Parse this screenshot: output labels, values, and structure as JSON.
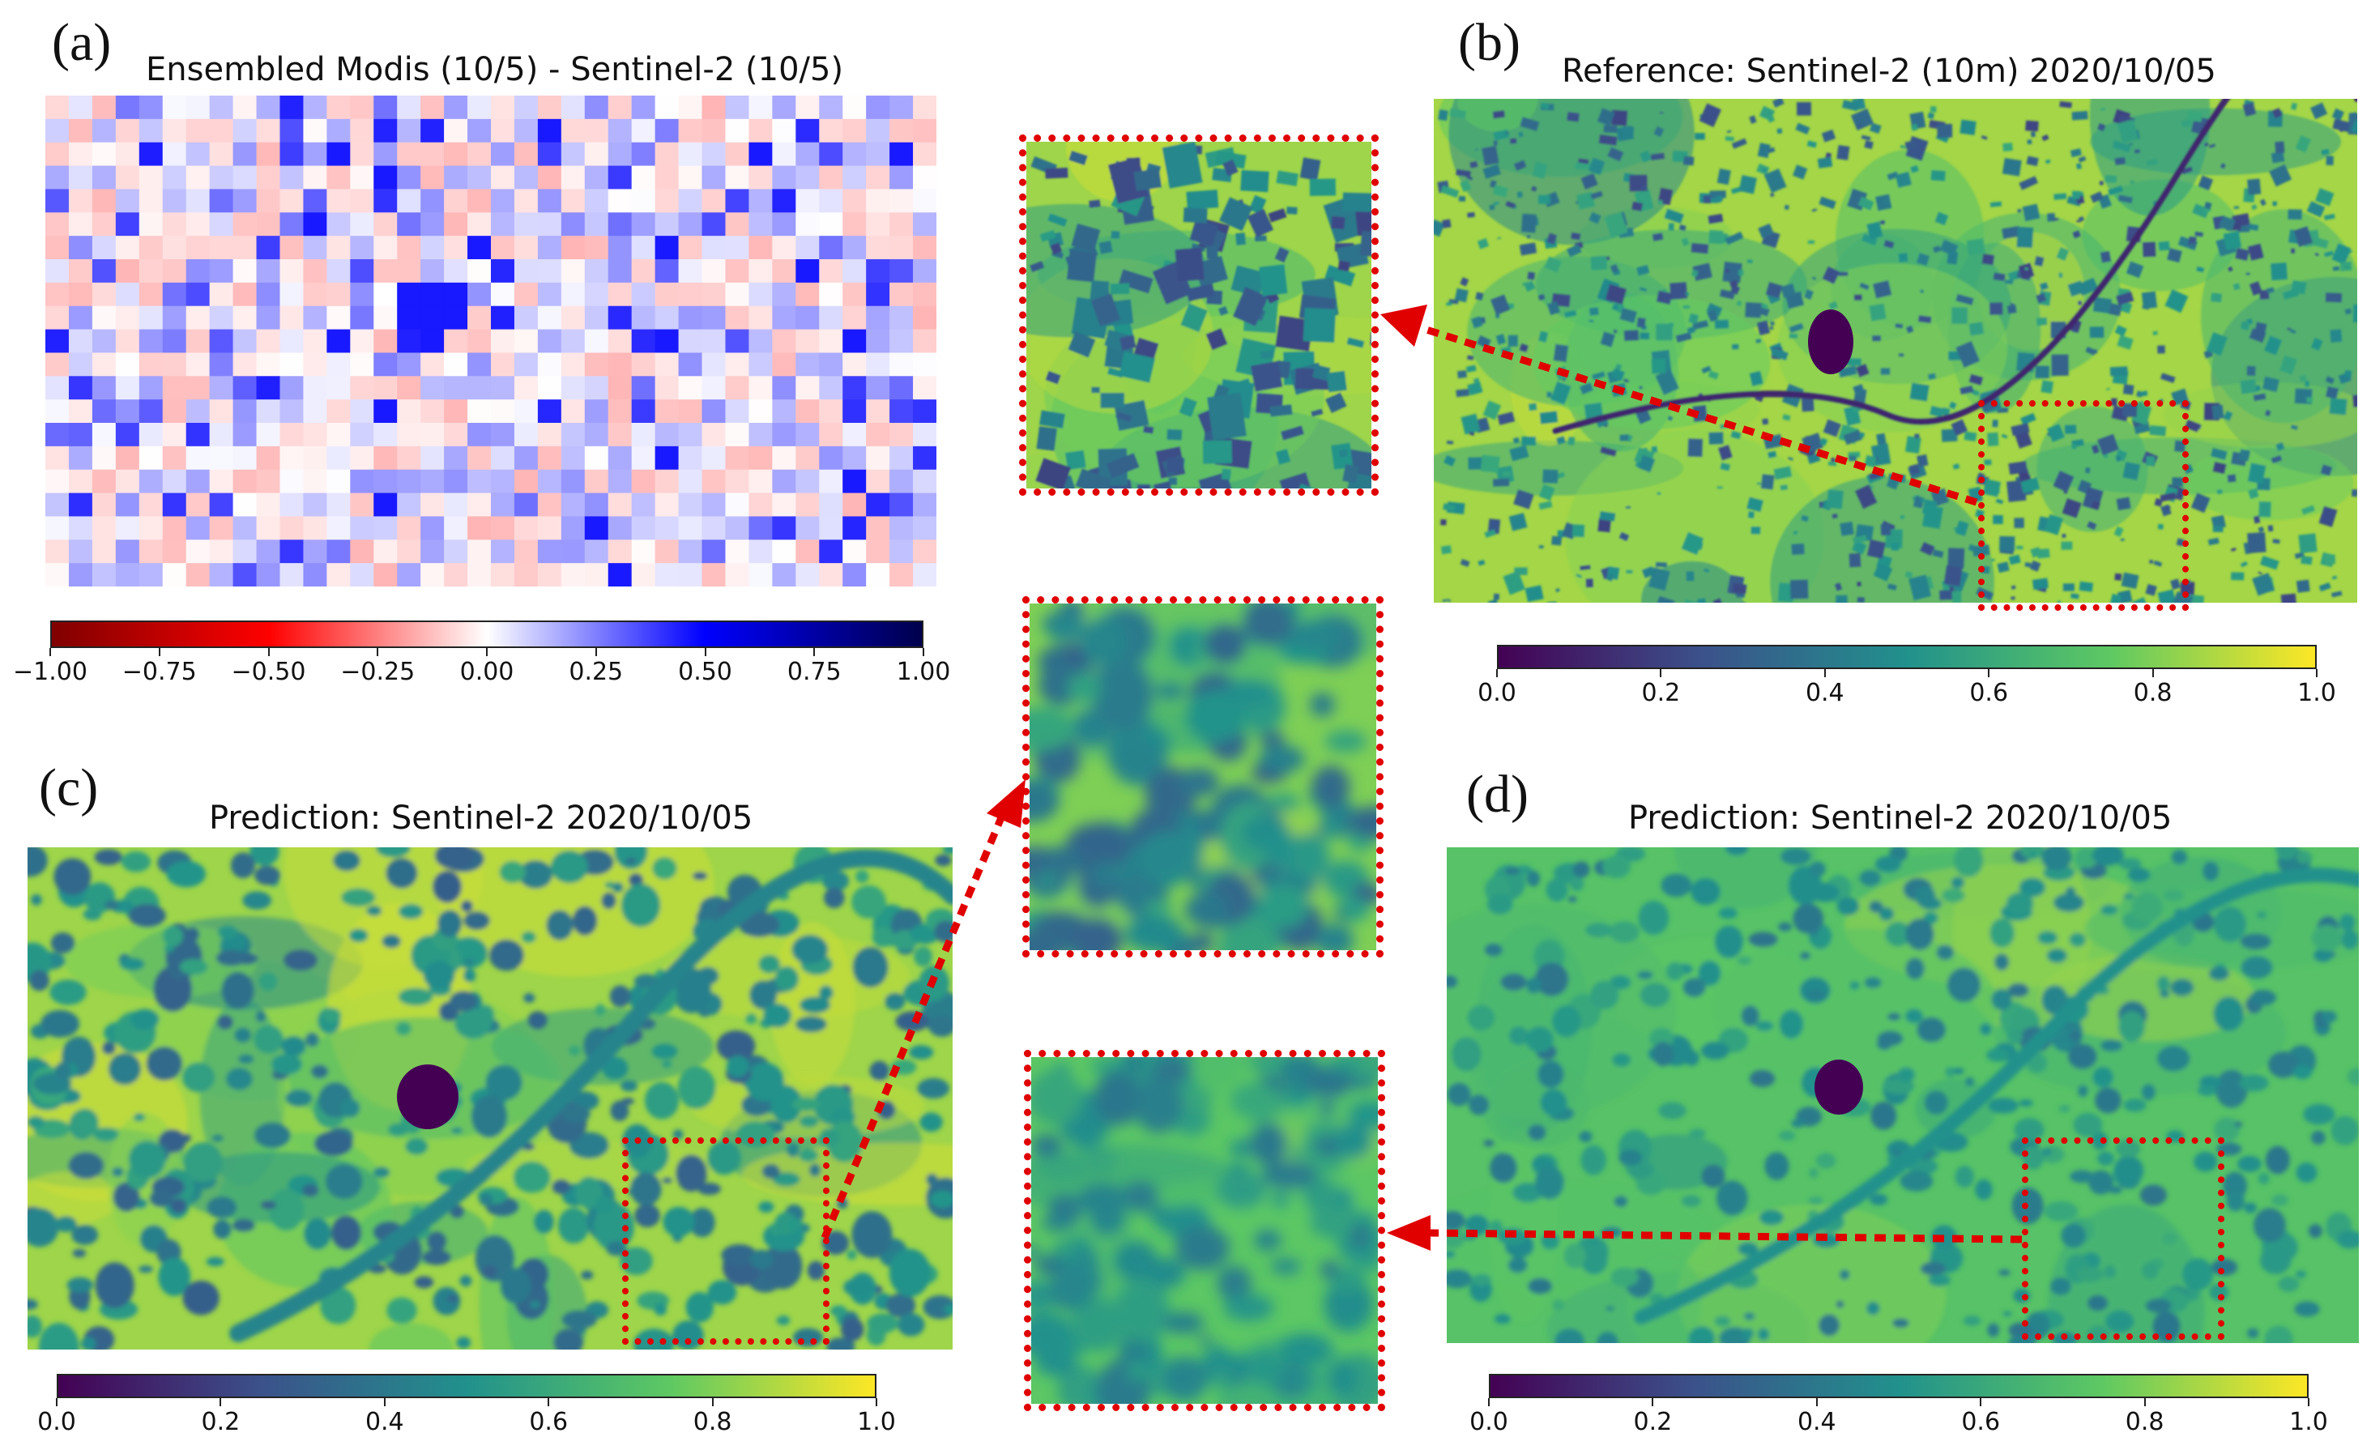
{
  "panels": {
    "a": {
      "label": "(a)",
      "title": "Ensembled Modis (10/5) - Sentinel-2 (10/5)"
    },
    "b": {
      "label": "(b)",
      "title": "Reference: Sentinel-2 (10m) 2020/10/05"
    },
    "c": {
      "label": "(c)",
      "title": "Prediction: Sentinel-2 2020/10/05"
    },
    "d": {
      "label": "(d)",
      "title": "Prediction: Sentinel-2 2020/10/05"
    }
  },
  "colorbars": {
    "diff": {
      "ticks": [
        "−1.00",
        "−0.75",
        "−0.50",
        "−0.25",
        "0.00",
        "0.25",
        "0.50",
        "0.75",
        "1.00"
      ],
      "min": -1,
      "max": 1,
      "colormap": "seismic_r"
    },
    "viridis": {
      "ticks": [
        "0.0",
        "0.2",
        "0.4",
        "0.6",
        "0.8",
        "1.0"
      ],
      "min": 0,
      "max": 1,
      "colormap": "viridis"
    }
  },
  "colors": {
    "highlight": "#e00000",
    "viridis": [
      "#440154",
      "#3b528b",
      "#21918c",
      "#5ec962",
      "#fde725"
    ],
    "diverging": [
      "#7f0000",
      "#ff0000",
      "#ffffff",
      "#0000ff",
      "#00004c"
    ]
  }
}
